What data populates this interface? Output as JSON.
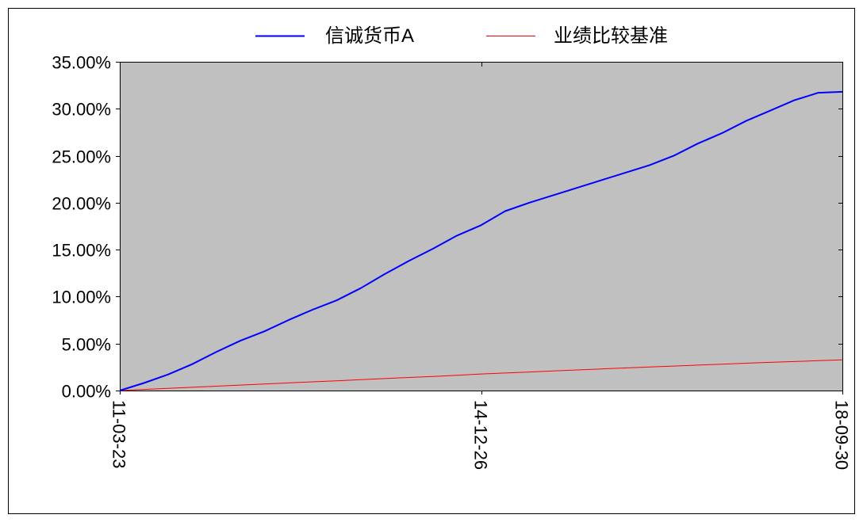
{
  "chart_data": {
    "type": "line",
    "title": "",
    "xlabel": "",
    "ylabel": "",
    "x_ticks": [
      "11-03-23",
      "14-12-26",
      "18-09-30"
    ],
    "x": [
      "11-03-23",
      "11-06-01",
      "11-09-01",
      "11-12-01",
      "12-03-01",
      "12-06-01",
      "12-09-01",
      "12-12-01",
      "13-03-01",
      "13-06-01",
      "13-09-01",
      "13-12-01",
      "14-03-01",
      "14-06-01",
      "14-09-01",
      "14-12-26",
      "15-03-01",
      "15-06-01",
      "15-09-01",
      "15-12-01",
      "16-03-01",
      "16-06-01",
      "16-09-01",
      "16-12-01",
      "17-03-01",
      "17-06-01",
      "17-09-01",
      "17-12-01",
      "18-03-01",
      "18-06-01",
      "18-09-30"
    ],
    "series": [
      {
        "name": "信诚货币A",
        "color": "#0000ff",
        "values": [
          0.0,
          0.8,
          1.7,
          2.8,
          4.1,
          5.3,
          6.3,
          7.5,
          8.6,
          9.6,
          10.9,
          12.4,
          13.8,
          15.1,
          16.5,
          17.6,
          19.1,
          20.0,
          20.8,
          21.6,
          22.4,
          23.2,
          24.0,
          25.0,
          26.3,
          27.4,
          28.7,
          29.8,
          30.9,
          31.7,
          31.8
        ],
        "linewidth": 2
      },
      {
        "name": "业绩比较基准",
        "color": "#ff0000",
        "values": [
          0.0,
          0.12,
          0.23,
          0.35,
          0.46,
          0.58,
          0.69,
          0.81,
          0.93,
          1.04,
          1.16,
          1.27,
          1.39,
          1.5,
          1.62,
          1.76,
          1.86,
          1.97,
          2.08,
          2.19,
          2.3,
          2.4,
          2.51,
          2.61,
          2.71,
          2.81,
          2.91,
          3.0,
          3.09,
          3.18,
          3.27
        ],
        "linewidth": 1
      }
    ],
    "y_unit": "%",
    "ylim": [
      0,
      35
    ],
    "y_ticks": [
      0,
      5,
      10,
      15,
      20,
      25,
      30,
      35
    ],
    "y_tick_labels": [
      "0.00%",
      "5.00%",
      "10.00%",
      "15.00%",
      "20.00%",
      "25.00%",
      "30.00%",
      "35.00%"
    ],
    "grid": false,
    "legend_position": "top-center",
    "plot_background": "#c0c0c0"
  }
}
